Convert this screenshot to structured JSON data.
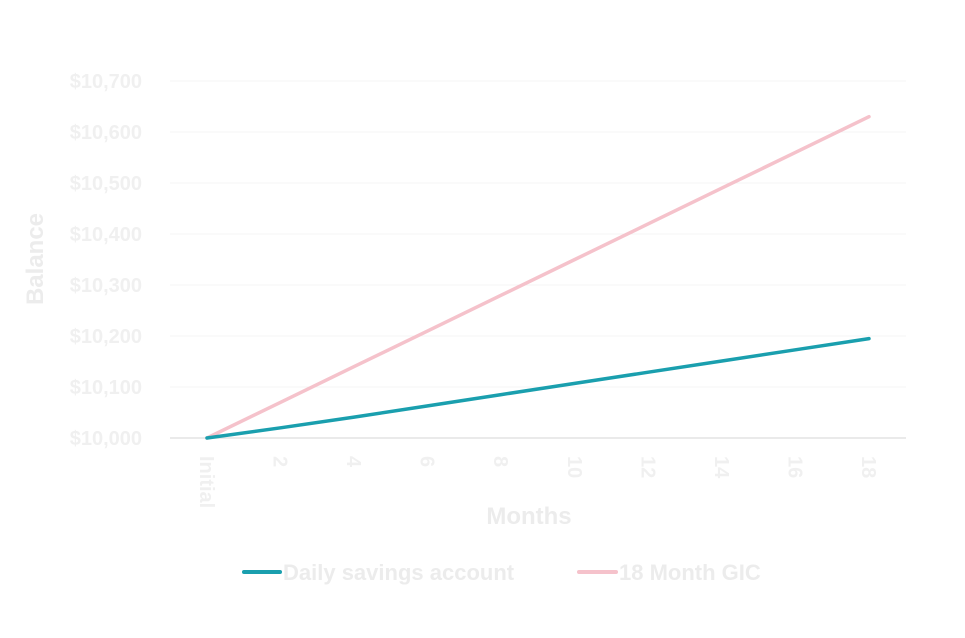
{
  "chart_data": {
    "type": "line",
    "title": "",
    "xlabel": "Months",
    "ylabel": "Balance",
    "categories": [
      "Initial",
      "2",
      "4",
      "6",
      "8",
      "10",
      "12",
      "14",
      "16",
      "18"
    ],
    "x": [
      0,
      2,
      4,
      6,
      8,
      10,
      12,
      14,
      16,
      18
    ],
    "y_ticks": [
      "$10,000",
      "$10,100",
      "$10,200",
      "$10,300",
      "$10,400",
      "$10,500",
      "$10,600",
      "$10,700"
    ],
    "ylim": [
      10000,
      10700
    ],
    "grid": true,
    "legend_position": "bottom",
    "series": [
      {
        "name": "Daily savings account",
        "color": "#1a9fae",
        "x": [
          0,
          2,
          4,
          6,
          8,
          10,
          12,
          14,
          16,
          18
        ],
        "values": [
          10000,
          10020,
          10041,
          10063,
          10085,
          10107,
          10129,
          10151,
          10173,
          10195
        ]
      },
      {
        "name": "18 Month GIC",
        "color": "#f5c2cb",
        "x": [
          0,
          2,
          4,
          6,
          8,
          10,
          12,
          14,
          16,
          18
        ],
        "values": [
          10000,
          10070,
          10140,
          10210,
          10280,
          10350,
          10420,
          10490,
          10560,
          10630
        ]
      }
    ]
  }
}
